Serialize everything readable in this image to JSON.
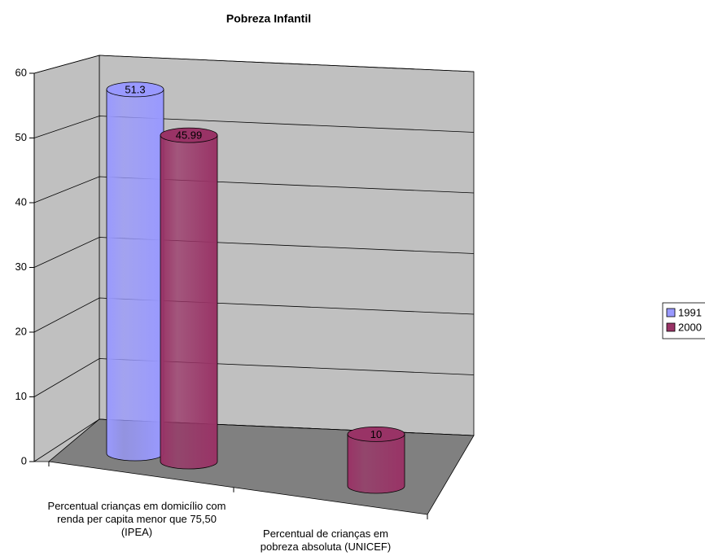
{
  "chart_data": {
    "type": "bar3d",
    "title": "Pobreza Infantil",
    "categories": [
      "Percentual crianças em domicílio com renda per capita menor que 75,50 (IPEA)",
      "Percentual de crianças em pobreza absoluta (UNICEF)"
    ],
    "series": [
      {
        "name": "1991",
        "color": "#9999ff",
        "values": [
          51.3,
          null
        ]
      },
      {
        "name": "2000",
        "color": "#993366",
        "values": [
          45.99,
          10
        ]
      }
    ],
    "ylim": [
      0,
      60
    ],
    "yticks": [
      0,
      10,
      20,
      30,
      40,
      50,
      60
    ],
    "grid": true,
    "legend": "right"
  }
}
